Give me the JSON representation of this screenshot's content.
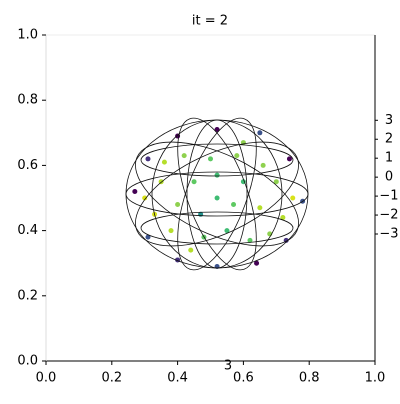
{
  "chart_data": {
    "type": "scatter",
    "title": "it = 2",
    "x": [
      0.52,
      0.45,
      0.6,
      0.4,
      0.65,
      0.5,
      0.55,
      0.35,
      0.7,
      0.33,
      0.72,
      0.48,
      0.58,
      0.42,
      0.62,
      0.3,
      0.75,
      0.52,
      0.47,
      0.57,
      0.38,
      0.66,
      0.44,
      0.6,
      0.36,
      0.68,
      0.27,
      0.78,
      0.52,
      0.52,
      0.31,
      0.74,
      0.31,
      0.73,
      0.4,
      0.65,
      0.4,
      0.64
    ],
    "y": [
      0.5,
      0.55,
      0.55,
      0.48,
      0.47,
      0.62,
      0.4,
      0.55,
      0.55,
      0.45,
      0.44,
      0.38,
      0.63,
      0.63,
      0.37,
      0.5,
      0.5,
      0.57,
      0.45,
      0.48,
      0.4,
      0.6,
      0.34,
      0.67,
      0.61,
      0.39,
      0.52,
      0.49,
      0.71,
      0.29,
      0.62,
      0.62,
      0.38,
      0.37,
      0.69,
      0.7,
      0.31,
      0.3
    ],
    "colors": [
      "#3fbc73",
      "#5ec962",
      "#3fbc73",
      "#8fd14f",
      "#b5de2b",
      "#5ec962",
      "#3fbc73",
      "#b5de2b",
      "#8fd14f",
      "#d8e219",
      "#b5de2b",
      "#5ec962",
      "#8fd14f",
      "#8fd14f",
      "#5ec962",
      "#d8e219",
      "#d8e219",
      "#3fbc73",
      "#21918c",
      "#5ec962",
      "#b5de2b",
      "#8fd14f",
      "#b5de2b",
      "#8fd14f",
      "#b5de2b",
      "#8fd14f",
      "#440154",
      "#3b528b",
      "#440154",
      "#3b528b",
      "#46327e",
      "#440154",
      "#3b528b",
      "#46327e",
      "#440154",
      "#3b528b",
      "#46327e",
      "#440154"
    ],
    "xlim": [
      0,
      1
    ],
    "ylim": [
      0,
      1
    ],
    "xticks": [
      {
        "value": 0,
        "label": "0.0"
      },
      {
        "value": 0.2,
        "label": "0.2"
      },
      {
        "value": 0.4,
        "label": "0.4"
      },
      {
        "value": 0.6,
        "label": "0.6"
      },
      {
        "value": 0.8,
        "label": "0.8"
      },
      {
        "value": 1,
        "label": "1.0"
      }
    ],
    "yticks": [
      {
        "value": 0,
        "label": "0.0"
      },
      {
        "value": 0.2,
        "label": "0.2"
      },
      {
        "value": 0.4,
        "label": "0.4"
      },
      {
        "value": 0.6,
        "label": "0.6"
      },
      {
        "value": 0.8,
        "label": "0.8"
      },
      {
        "value": 1,
        "label": "1.0"
      }
    ],
    "y2lim": [
      -9.7,
      7.5
    ],
    "y2ticks": [
      3,
      2,
      1,
      0,
      {
        "value": -1,
        "label": "−1"
      },
      {
        "value": -2,
        "label": "−2"
      },
      {
        "value": -3,
        "label": "−3"
      }
    ],
    "annotations": [
      "3"
    ]
  }
}
